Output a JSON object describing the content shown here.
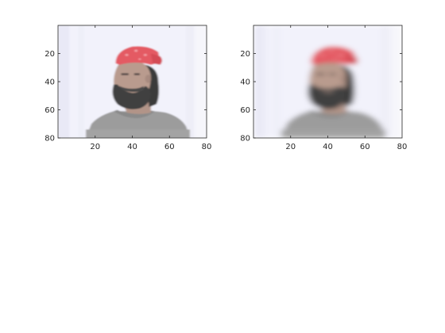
{
  "figure": {
    "background": "#ffffff",
    "panels": [
      {
        "id": "left",
        "image_description": "low-resolution photo of a bearded man wearing a red bandana and gray t-shirt, face turned to the viewer's right",
        "blur": "sharper",
        "x_ticks": [
          "20",
          "40",
          "60",
          "80"
        ],
        "y_ticks": [
          "20",
          "40",
          "60",
          "80"
        ],
        "x_range": [
          0,
          80
        ],
        "y_range": [
          0,
          80
        ]
      },
      {
        "id": "right",
        "image_description": "same photo, smoothed / blurred version",
        "blur": "blurred",
        "x_ticks": [
          "20",
          "40",
          "60",
          "80"
        ],
        "y_ticks": [
          "20",
          "40",
          "60",
          "80"
        ],
        "x_range": [
          0,
          80
        ],
        "y_range": [
          0,
          80
        ]
      }
    ],
    "colors": {
      "background_sheet": "#f2f2fb",
      "bandana": "#e35a63",
      "beard": "#3f3f3f",
      "skin": "#b79a8c",
      "shirt": "#9b9b9b",
      "axis": "#262626"
    }
  }
}
